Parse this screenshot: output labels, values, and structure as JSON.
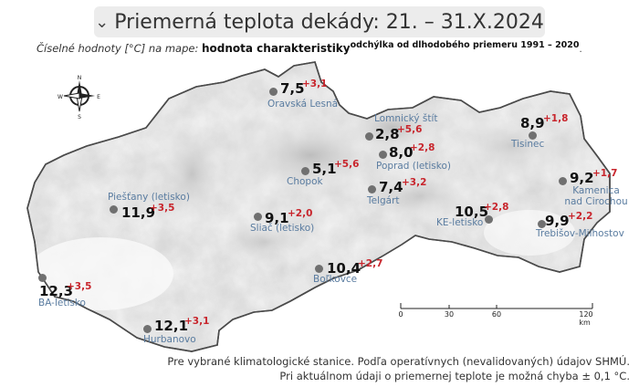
{
  "header": {
    "chevron": "chevron-down-icon",
    "title": "Priemerná teplota dekády: 21. – 31.X.2024"
  },
  "legend": {
    "prefix": "Číselné hodnoty [°C] na mape:",
    "value_label": "hodnota charakteristiky",
    "deviation_label": "odchýlka od dlhodobého priemeru 1991 – 2020",
    "period_end": "."
  },
  "compass": {
    "n": "N",
    "s": "S",
    "e": "E",
    "w": "W"
  },
  "stations": [
    {
      "name": "Oravská Lesná",
      "temp": "7,5",
      "dev": "+3,1"
    },
    {
      "name": "Lomnický štít",
      "temp": "2,8",
      "dev": "+5,6"
    },
    {
      "name": "Poprad (letisko)",
      "temp": "8,0",
      "dev": "+2,8"
    },
    {
      "name": "Tisinec",
      "temp": "8,9",
      "dev": "+1,8"
    },
    {
      "name": "Chopok",
      "temp": "5,1",
      "dev": "+5,6"
    },
    {
      "name": "Telgárt",
      "temp": "7,4",
      "dev": "+3,2"
    },
    {
      "name": "Kamenica nad Cirochou",
      "temp": "9,2",
      "dev": "+1,7"
    },
    {
      "name": "Piešťany (letisko)",
      "temp": "11,9",
      "dev": "+3,5"
    },
    {
      "name": "Sliač (letisko)",
      "temp": "9,1",
      "dev": "+2,0"
    },
    {
      "name": "KE-letisko",
      "temp": "10,5",
      "dev": "+2,8"
    },
    {
      "name": "Trebišov-Milhostov",
      "temp": "9,9",
      "dev": "+2,2"
    },
    {
      "name": "Boľkovce",
      "temp": "10,4",
      "dev": "+2,7"
    },
    {
      "name": "BA-letisko",
      "temp": "12,3",
      "dev": "+3,5"
    },
    {
      "name": "Hurbanovo",
      "temp": "12,1",
      "dev": "+3,1"
    }
  ],
  "scale": {
    "ticks": [
      "0",
      "30",
      "60",
      "120 km"
    ]
  },
  "footnote": {
    "line1": "Pre vybrané klimatologické stanice. Podľa operatívnych (nevalidovaných) údajov SHMÚ.",
    "line2": "Pri aktuálnom údaji o priemernej teplote je možná chyba ± 0,1 °C."
  }
}
